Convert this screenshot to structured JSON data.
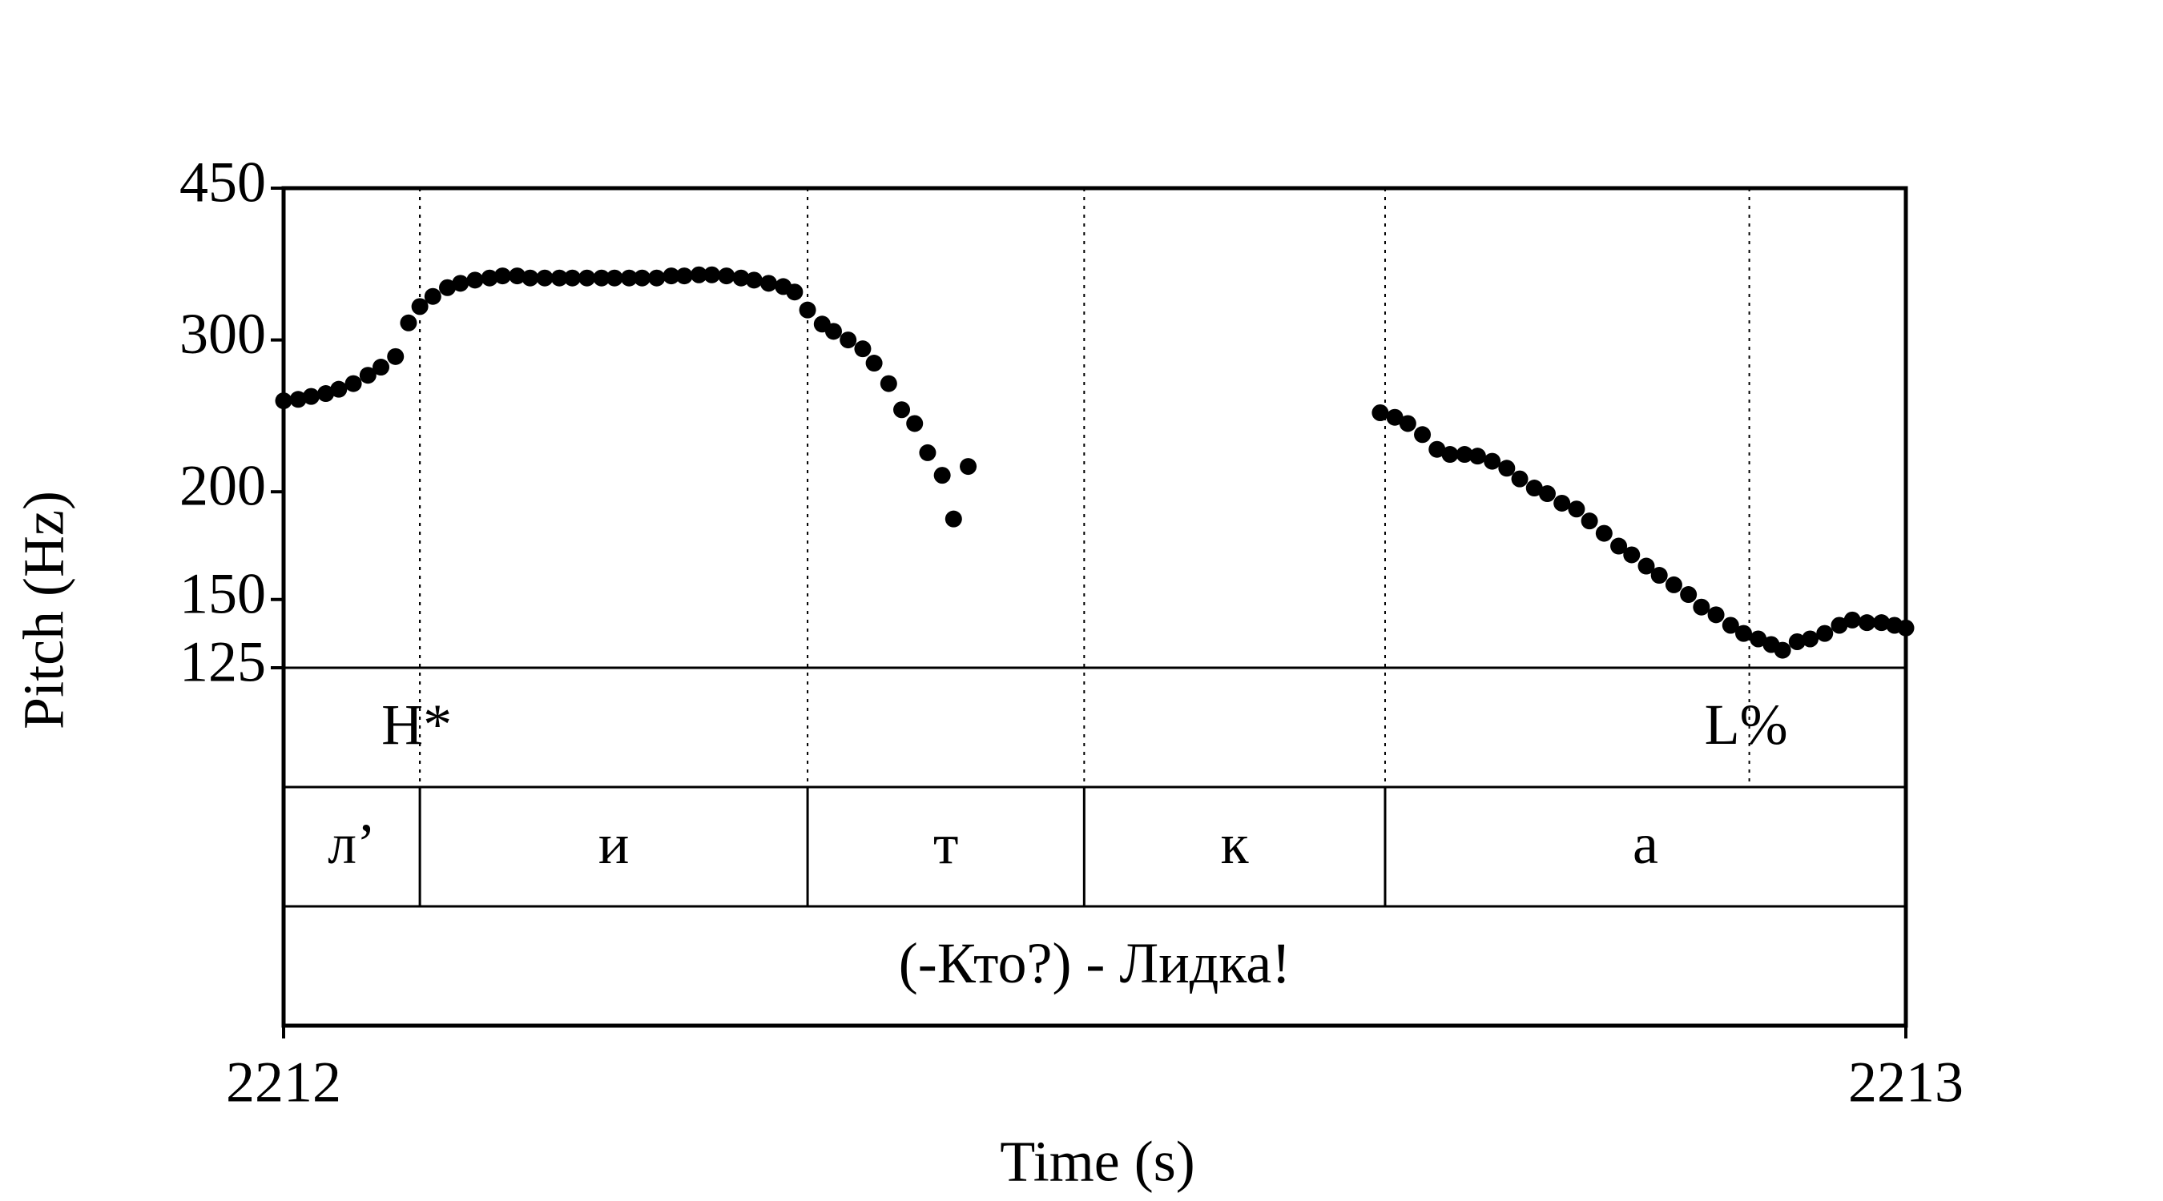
{
  "chart_data": {
    "type": "scatter",
    "xlabel": "Time (s)",
    "ylabel": "Pitch (Hz)",
    "xlim": [
      2212,
      2213
    ],
    "xticks": [
      2212,
      2213
    ],
    "ylim": [
      125,
      450
    ],
    "yticks": [
      125,
      150,
      200,
      300,
      450
    ],
    "log_y": true,
    "color": "#000000",
    "x": [
      2212.0,
      2212.009,
      2212.017,
      2212.026,
      2212.034,
      2212.043,
      2212.052,
      2212.06,
      2212.069,
      2212.077,
      2212.084,
      2212.092,
      2212.101,
      2212.109,
      2212.118,
      2212.127,
      2212.135,
      2212.144,
      2212.152,
      2212.161,
      2212.17,
      2212.178,
      2212.187,
      2212.196,
      2212.204,
      2212.213,
      2212.221,
      2212.23,
      2212.239,
      2212.247,
      2212.256,
      2212.264,
      2212.273,
      2212.282,
      2212.29,
      2212.299,
      2212.308,
      2212.315,
      2212.323,
      2212.332,
      2212.339,
      2212.348,
      2212.357,
      2212.364,
      2212.373,
      2212.381,
      2212.389,
      2212.397,
      2212.406,
      2212.413,
      2212.422,
      2212.676,
      2212.685,
      2212.693,
      2212.702,
      2212.711,
      2212.719,
      2212.728,
      2212.736,
      2212.745,
      2212.754,
      2212.762,
      2212.771,
      2212.779,
      2212.788,
      2212.797,
      2212.805,
      2212.814,
      2212.823,
      2212.831,
      2212.84,
      2212.848,
      2212.857,
      2212.866,
      2212.874,
      2212.883,
      2212.892,
      2212.9,
      2212.909,
      2212.917,
      2212.924,
      2212.933,
      2212.941,
      2212.95,
      2212.959,
      2212.967,
      2212.976,
      2212.985,
      2212.993,
      2213.0
    ],
    "values": [
      255,
      256,
      258,
      260,
      263,
      267,
      273,
      279,
      287,
      314,
      328,
      337,
      345,
      349,
      352,
      354,
      356,
      356,
      354,
      354,
      354,
      354,
      354,
      354,
      354,
      354,
      354,
      354,
      356,
      356,
      357,
      357,
      356,
      354,
      352,
      349,
      346,
      341,
      325,
      313,
      307,
      300,
      293,
      282,
      267,
      249,
      240,
      222,
      209,
      186,
      214,
      247,
      244,
      240,
      233,
      224,
      221,
      221,
      220,
      217,
      213,
      207,
      202,
      199,
      194,
      191,
      185,
      179,
      173,
      169,
      164,
      160,
      156,
      152,
      147,
      144,
      140,
      137,
      135,
      133,
      131,
      134,
      135,
      137,
      140,
      142,
      141,
      141,
      140,
      139
    ],
    "tiers": [
      {
        "type": "point",
        "points": [
          {
            "time": 2212.084,
            "label": "H*"
          },
          {
            "time": 2212.9035,
            "label": "L%"
          }
        ]
      },
      {
        "type": "interval",
        "boundaries": [
          2212,
          2212.084,
          2212.323,
          2212.4935,
          2212.679,
          2213
        ],
        "labels": [
          "л’",
          "и",
          "т",
          "к",
          "а"
        ]
      },
      {
        "type": "interval",
        "boundaries": [
          2212,
          2213
        ],
        "labels": [
          "(-Кто?) - Лидка!"
        ]
      }
    ]
  }
}
